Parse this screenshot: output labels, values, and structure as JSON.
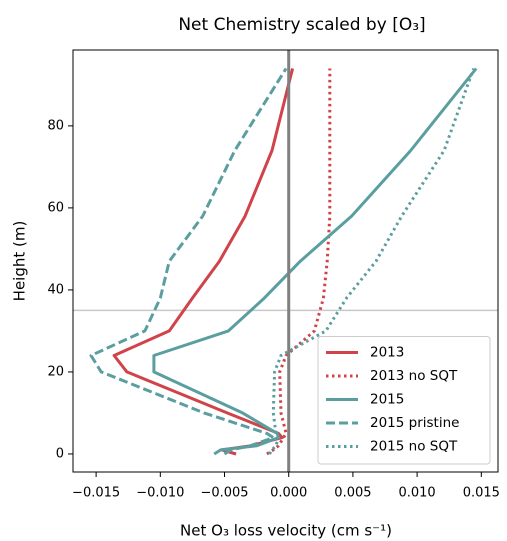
{
  "chart_data": {
    "type": "line",
    "title": "Net Chemistry scaled by [O₃]",
    "xlabel": "Net O₃ loss velocity (cm s⁻¹)",
    "ylabel": "Height (m)",
    "y": [
      0,
      1,
      2,
      4,
      5,
      10,
      20,
      24,
      30,
      38,
      47,
      58,
      74,
      94
    ],
    "series": [
      {
        "name": "2013",
        "color": "#d0434a",
        "style": "solid",
        "values": [
          -0.0041,
          -0.0052,
          -0.003,
          -0.0005,
          -0.0008,
          -0.0048,
          -0.0126,
          -0.0136,
          -0.0093,
          -0.0075,
          -0.0054,
          -0.0034,
          -0.0013,
          0.0003
        ]
      },
      {
        "name": "2013 no SQT",
        "color": "#d0434a",
        "style": "dotted",
        "values": [
          -0.0017,
          -0.0012,
          -0.0008,
          -0.0004,
          -0.0002,
          -0.0006,
          -0.0007,
          -0.0002,
          0.002,
          0.0027,
          0.003,
          0.0032,
          0.0032,
          0.0032
        ]
      },
      {
        "name": "2015",
        "color": "#5b9ea0",
        "style": "solid",
        "values": [
          -0.0058,
          -0.0053,
          -0.0025,
          -0.0008,
          -0.0009,
          -0.0036,
          -0.0105,
          -0.0105,
          -0.0047,
          -0.0019,
          0.0009,
          0.0049,
          0.0095,
          0.0146
        ]
      },
      {
        "name": "2015 pristine",
        "color": "#5b9ea0",
        "style": "dashed",
        "values": [
          -0.005,
          -0.0045,
          -0.003,
          -0.0012,
          -0.0017,
          -0.0066,
          -0.0146,
          -0.0154,
          -0.0112,
          -0.01,
          -0.0093,
          -0.0067,
          -0.0042,
          -0.0002
        ]
      },
      {
        "name": "2015 no SQT",
        "color": "#5b9ea0",
        "style": "dotted",
        "values": [
          -0.0015,
          -0.0013,
          -0.001,
          -0.0008,
          -0.001,
          -0.0012,
          -0.0011,
          -0.0006,
          0.0029,
          0.0045,
          0.0068,
          0.0088,
          0.0121,
          0.0144
        ]
      }
    ],
    "xlim": [
      -0.0168,
      0.0163
    ],
    "ylim": [
      -4.4,
      98.5
    ],
    "xticks": [
      {
        "value": -0.015,
        "label": "−0.015"
      },
      {
        "value": -0.01,
        "label": "−0.010"
      },
      {
        "value": -0.005,
        "label": "−0.005"
      },
      {
        "value": 0,
        "label": "0.000"
      },
      {
        "value": 0.005,
        "label": "0.005"
      },
      {
        "value": 0.01,
        "label": "0.010"
      },
      {
        "value": 0.015,
        "label": "0.015"
      }
    ],
    "yticks": [
      0,
      20,
      40,
      60,
      80
    ],
    "hline": 35,
    "hline_color": "#c8c8c8",
    "vline": 0,
    "vline_color": "#808080",
    "legend": "lower right"
  }
}
